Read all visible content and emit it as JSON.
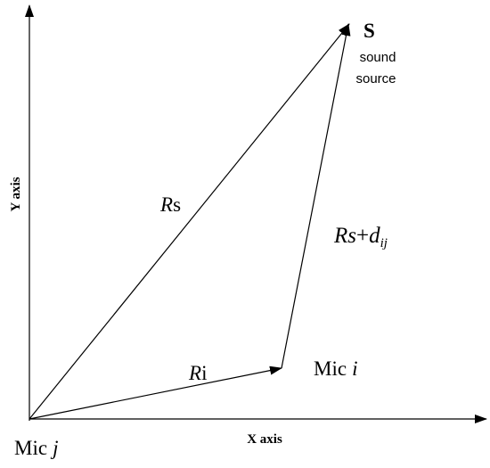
{
  "source": {
    "label": "S",
    "caption": [
      "sound",
      "source"
    ]
  },
  "axes": {
    "y": "Y axis",
    "x": "X axis"
  },
  "vectors": {
    "rs": [
      "R",
      "s"
    ],
    "ri": [
      "R",
      "i"
    ],
    "rs_dij": [
      "Rs",
      "+",
      "d",
      "ij"
    ]
  },
  "mics": {
    "i": [
      "Mic",
      "i"
    ],
    "j": [
      "Mic",
      "j"
    ]
  }
}
